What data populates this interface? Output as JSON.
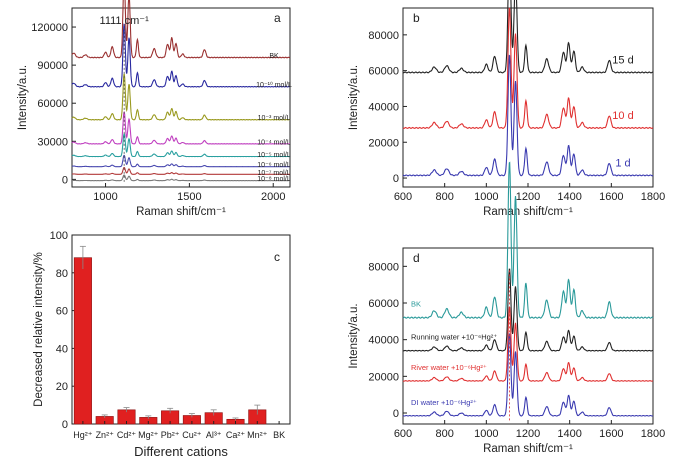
{
  "chart_data": [
    {
      "panel": "a",
      "type": "line",
      "xlabel": "Raman shift/cm⁻¹",
      "ylabel": "Intensity/a.u.",
      "xlim": [
        800,
        2100
      ],
      "ylim": [
        -6000,
        135000
      ],
      "xticks": [
        1000,
        1500,
        2000
      ],
      "yticks": [
        0,
        30000,
        60000,
        90000,
        120000
      ],
      "annotation": "1111 cm⁻¹",
      "series": [
        {
          "name": "10⁻⁸ mol/L",
          "color": "#7a7a7a",
          "baseline": -1000,
          "scale": 0.05
        },
        {
          "name": "10⁻⁷ mol/L",
          "color": "#b23a3a",
          "baseline": 4000,
          "scale": 0.06
        },
        {
          "name": "10⁻⁶ mol/L",
          "color": "#4a4ab0",
          "baseline": 10000,
          "scale": 0.1
        },
        {
          "name": "10⁻⁵ mol/L",
          "color": "#2aa0a0",
          "baseline": 18000,
          "scale": 0.2
        },
        {
          "name": "10⁻⁴ mol/L",
          "color": "#c040c0",
          "baseline": 28000,
          "scale": 0.28
        },
        {
          "name": "10⁻³ mol/L",
          "color": "#9a9a20",
          "baseline": 47000,
          "scale": 0.4
        },
        {
          "name": "10⁻¹⁰ mol/L",
          "color": "#2a2aa0",
          "baseline": 73000,
          "scale": 0.55
        },
        {
          "name": "BK",
          "color": "#9a3030",
          "baseline": 96000,
          "scale": 0.7
        }
      ]
    },
    {
      "panel": "b",
      "type": "line",
      "xlabel": "Raman shift/cm⁻¹",
      "ylabel": "Intensity/a.u.",
      "xlim": [
        600,
        1800
      ],
      "ylim": [
        -5000,
        95000
      ],
      "xticks": [
        600,
        800,
        1000,
        1200,
        1400,
        1600,
        1800
      ],
      "yticks": [
        0,
        20000,
        40000,
        60000,
        80000
      ],
      "series": [
        {
          "name": "1 d",
          "color": "#3a3ab0",
          "baseline": 1500,
          "scale": 0.75
        },
        {
          "name": "10 d",
          "color": "#e03030",
          "baseline": 28000,
          "scale": 0.75
        },
        {
          "name": "15 d",
          "color": "#222222",
          "baseline": 59000,
          "scale": 0.75
        }
      ]
    },
    {
      "panel": "c",
      "type": "bar",
      "xlabel": "Different cations",
      "ylabel": "Decreased relative intensity/%",
      "ylim": [
        0,
        100
      ],
      "yticks": [
        0,
        20,
        40,
        60,
        80,
        100
      ],
      "categories": [
        "Hg²⁺",
        "Zn²⁺",
        "Cd²⁺",
        "Mg²⁺",
        "Pb²⁺",
        "Cu²⁺",
        "Al³⁺",
        "Ca²⁺",
        "Mn²⁺",
        "BK"
      ],
      "values": [
        88,
        4,
        7.5,
        3.5,
        7,
        4.5,
        6,
        2.5,
        7.5,
        0
      ],
      "errors": [
        6,
        0.8,
        1.2,
        0.8,
        1.3,
        1,
        1.5,
        0.7,
        2.5,
        0
      ],
      "color": "#e02020"
    },
    {
      "panel": "d",
      "type": "line",
      "xlabel": "Raman shift/cm⁻¹",
      "ylabel": "Intensity/a.u.",
      "xlim": [
        600,
        1800
      ],
      "ylim": [
        -6000,
        90000
      ],
      "xticks": [
        600,
        800,
        1000,
        1200,
        1400,
        1600,
        1800
      ],
      "yticks": [
        0,
        20000,
        40000,
        60000,
        80000
      ],
      "series": [
        {
          "name": "DI water +10⁻⁶Hg²⁺",
          "color": "#3a3ab0",
          "baseline": -1500,
          "scale": 0.5
        },
        {
          "name": "River water +10⁻⁶Hg²⁺",
          "color": "#e03030",
          "baseline": 17500,
          "scale": 0.45
        },
        {
          "name": "Running water +10⁻⁶Hg²⁺",
          "color": "#222222",
          "baseline": 34000,
          "scale": 0.5
        },
        {
          "name": "BK",
          "color": "#2a9a9a",
          "baseline": 52000,
          "scale": 0.95
        }
      ]
    }
  ]
}
